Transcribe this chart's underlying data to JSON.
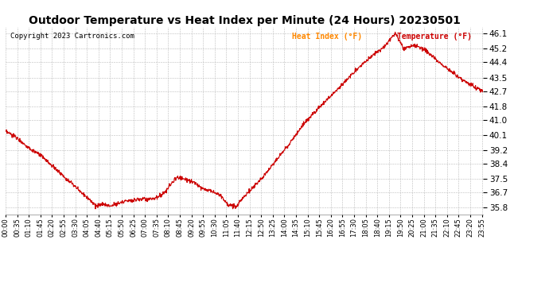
{
  "title": "Outdoor Temperature vs Heat Index per Minute (24 Hours) 20230501",
  "copyright": "Copyright 2023 Cartronics.com",
  "legend_heat_index": "Heat Index (°F)",
  "legend_temperature": "Temperature (°F)",
  "ylim": [
    35.4,
    46.5
  ],
  "yticks": [
    35.8,
    36.7,
    37.5,
    38.4,
    39.2,
    40.1,
    41.0,
    41.8,
    42.7,
    43.5,
    44.4,
    45.2,
    46.1
  ],
  "line_color": "#cc0000",
  "background_color": "#ffffff",
  "grid_color": "#bbbbbb",
  "title_color": "#000000",
  "copyright_color": "#000000",
  "legend_heat_index_color": "#ff8800",
  "legend_temperature_color": "#cc0000",
  "title_fontsize": 10,
  "xlabel_fontsize": 6,
  "ylabel_fontsize": 7.5
}
